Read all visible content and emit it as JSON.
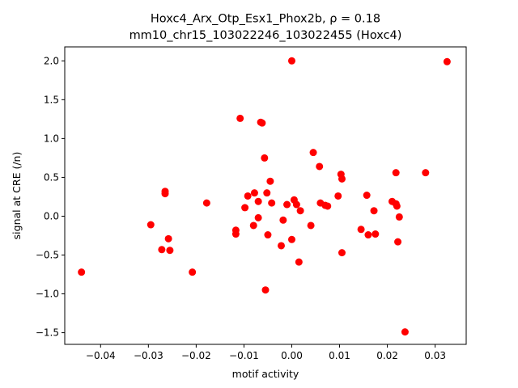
{
  "chart_data": {
    "type": "scatter",
    "title_line1": "Hoxc4_Arx_Otp_Esx1_Phox2b, ρ = 0.18",
    "title_line2": "mm10_chr15_103022246_103022455 (Hoxc4)",
    "xlabel": "motif activity",
    "ylabel": "signal at CRE (/n)",
    "xlim": [
      -0.0475,
      0.0365
    ],
    "ylim": [
      -1.65,
      2.18
    ],
    "xticks": [
      -0.04,
      -0.03,
      -0.02,
      -0.01,
      0.0,
      0.01,
      0.02,
      0.03
    ],
    "xtick_labels": [
      "−0.04",
      "−0.03",
      "−0.02",
      "−0.01",
      "0.00",
      "0.01",
      "0.02",
      "0.03"
    ],
    "yticks": [
      -1.5,
      -1.0,
      -0.5,
      0.0,
      0.5,
      1.0,
      1.5,
      2.0
    ],
    "ytick_labels": [
      "−1.5",
      "−1.0",
      "−0.5",
      "0.0",
      "0.5",
      "1.0",
      "1.5",
      "2.0"
    ],
    "grid": false,
    "marker_color": "#ff0000",
    "points": [
      {
        "x": -0.044,
        "y": -0.72
      },
      {
        "x": -0.0295,
        "y": -0.11
      },
      {
        "x": -0.0272,
        "y": -0.43
      },
      {
        "x": -0.0265,
        "y": 0.32
      },
      {
        "x": -0.0265,
        "y": 0.29
      },
      {
        "x": -0.0258,
        "y": -0.29
      },
      {
        "x": -0.0255,
        "y": -0.44
      },
      {
        "x": -0.0208,
        "y": -0.72
      },
      {
        "x": -0.0178,
        "y": 0.17
      },
      {
        "x": -0.0117,
        "y": -0.18
      },
      {
        "x": -0.0117,
        "y": -0.23
      },
      {
        "x": -0.0108,
        "y": 1.26
      },
      {
        "x": -0.0098,
        "y": 0.11
      },
      {
        "x": -0.0092,
        "y": 0.26
      },
      {
        "x": -0.008,
        "y": -0.12
      },
      {
        "x": -0.0078,
        "y": 0.3
      },
      {
        "x": -0.007,
        "y": 0.19
      },
      {
        "x": -0.007,
        "y": -0.02
      },
      {
        "x": -0.0065,
        "y": 1.21
      },
      {
        "x": -0.0062,
        "y": 1.2
      },
      {
        "x": -0.0057,
        "y": 0.75
      },
      {
        "x": -0.0055,
        "y": -0.95
      },
      {
        "x": -0.0052,
        "y": 0.3
      },
      {
        "x": -0.005,
        "y": -0.24
      },
      {
        "x": -0.0045,
        "y": 0.45
      },
      {
        "x": -0.0042,
        "y": 0.17
      },
      {
        "x": -0.0022,
        "y": -0.38
      },
      {
        "x": -0.0018,
        "y": -0.05
      },
      {
        "x": -0.001,
        "y": 0.15
      },
      {
        "x": 0.0,
        "y": 2.0
      },
      {
        "x": 0.0,
        "y": -0.3
      },
      {
        "x": 0.0005,
        "y": 0.21
      },
      {
        "x": 0.001,
        "y": 0.15
      },
      {
        "x": 0.0015,
        "y": -0.59
      },
      {
        "x": 0.0018,
        "y": 0.07
      },
      {
        "x": 0.004,
        "y": -0.12
      },
      {
        "x": 0.0045,
        "y": 0.82
      },
      {
        "x": 0.0058,
        "y": 0.64
      },
      {
        "x": 0.006,
        "y": 0.17
      },
      {
        "x": 0.007,
        "y": 0.14
      },
      {
        "x": 0.0075,
        "y": 0.13
      },
      {
        "x": 0.0097,
        "y": 0.26
      },
      {
        "x": 0.0103,
        "y": 0.54
      },
      {
        "x": 0.0105,
        "y": 0.48
      },
      {
        "x": 0.0105,
        "y": -0.47
      },
      {
        "x": 0.0145,
        "y": -0.17
      },
      {
        "x": 0.0157,
        "y": 0.27
      },
      {
        "x": 0.016,
        "y": -0.24
      },
      {
        "x": 0.0172,
        "y": 0.07
      },
      {
        "x": 0.0175,
        "y": -0.23
      },
      {
        "x": 0.021,
        "y": 0.19
      },
      {
        "x": 0.0218,
        "y": 0.56
      },
      {
        "x": 0.0218,
        "y": 0.16
      },
      {
        "x": 0.022,
        "y": 0.13
      },
      {
        "x": 0.0222,
        "y": -0.33
      },
      {
        "x": 0.0225,
        "y": -0.01
      },
      {
        "x": 0.0237,
        "y": -1.49
      },
      {
        "x": 0.028,
        "y": 0.56
      },
      {
        "x": 0.0325,
        "y": 1.99
      }
    ]
  }
}
